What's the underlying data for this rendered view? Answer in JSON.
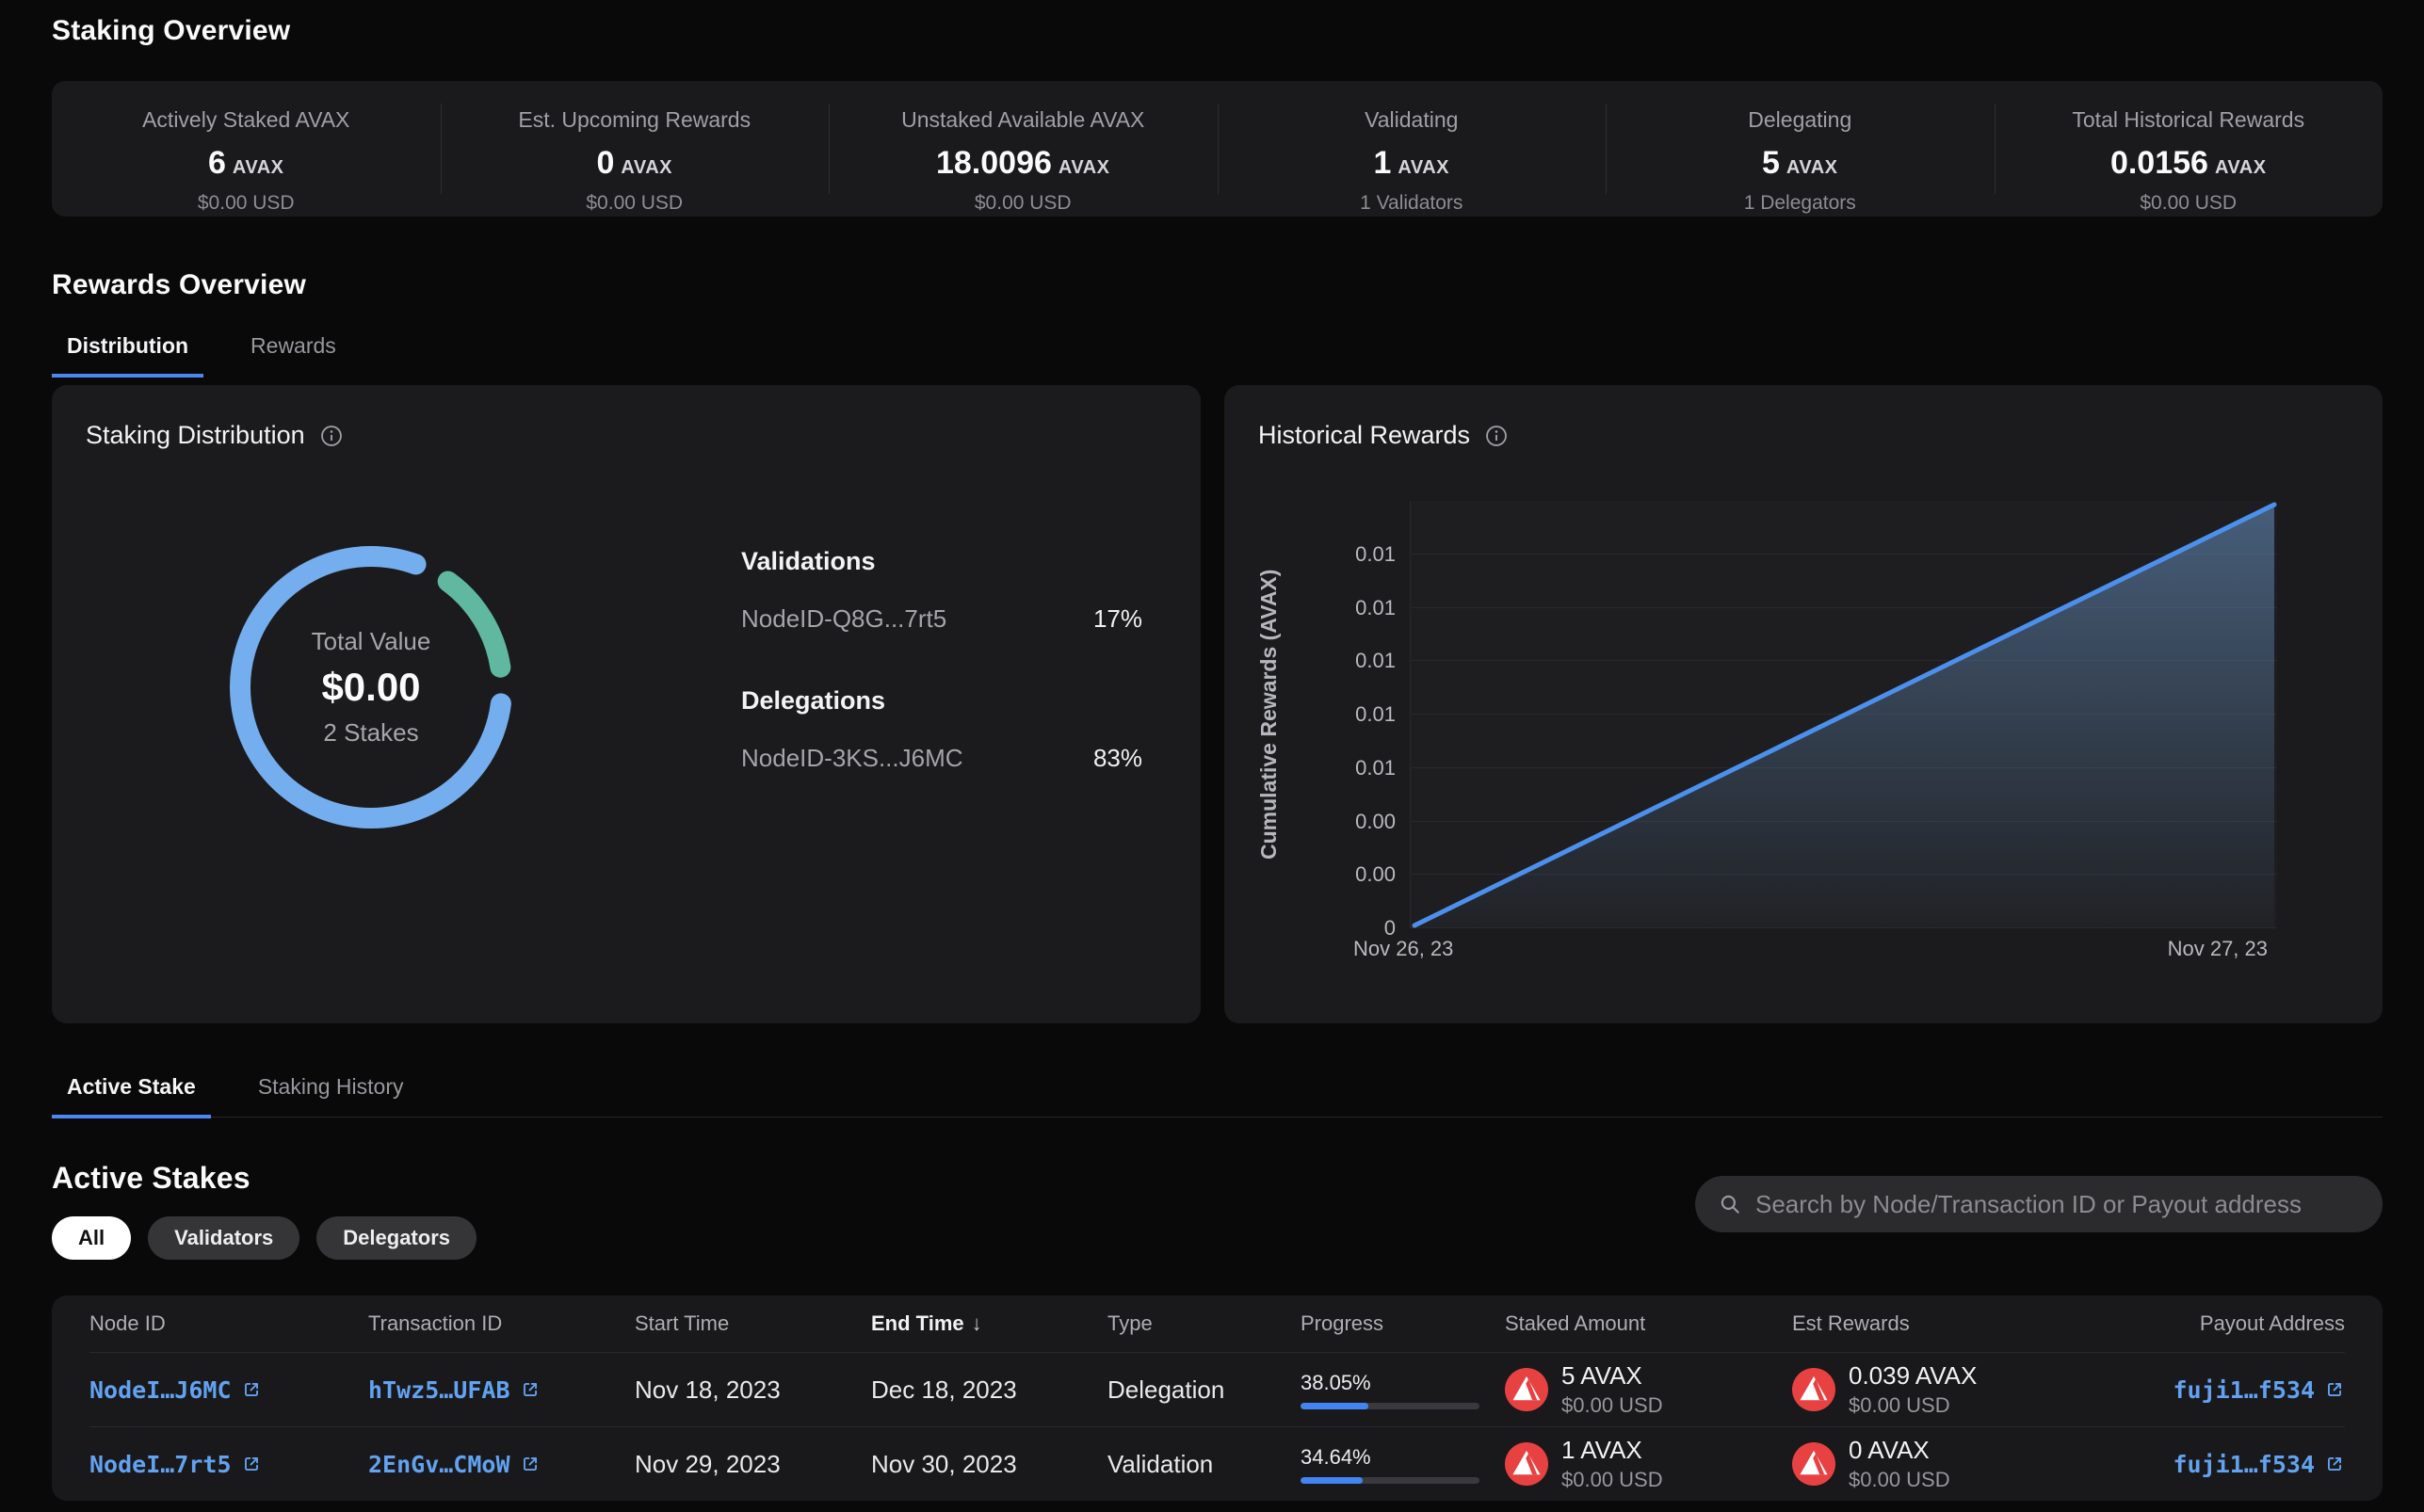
{
  "staking_overview": {
    "title": "Staking Overview",
    "stats": [
      {
        "label": "Actively Staked AVAX",
        "value": "6",
        "unit": "AVAX",
        "sub": "$0.00 USD"
      },
      {
        "label": "Est. Upcoming Rewards",
        "value": "0",
        "unit": "AVAX",
        "sub": "$0.00 USD"
      },
      {
        "label": "Unstaked Available AVAX",
        "value": "18.0096",
        "unit": "AVAX",
        "sub": "$0.00 USD"
      },
      {
        "label": "Validating",
        "value": "1",
        "unit": "AVAX",
        "sub": "1 Validators"
      },
      {
        "label": "Delegating",
        "value": "5",
        "unit": "AVAX",
        "sub": "1 Delegators"
      },
      {
        "label": "Total Historical Rewards",
        "value": "0.0156",
        "unit": "AVAX",
        "sub": "$0.00 USD"
      }
    ]
  },
  "rewards_overview": {
    "title": "Rewards Overview",
    "tabs": [
      {
        "label": "Distribution",
        "active": true
      },
      {
        "label": "Rewards",
        "active": false
      }
    ]
  },
  "staking_distribution": {
    "title": "Staking Distribution",
    "center": {
      "label": "Total Value",
      "value": "$0.00",
      "sub": "2 Stakes"
    },
    "validations_heading": "Validations",
    "delegations_heading": "Delegations",
    "validations": [
      {
        "name": "NodeID-Q8G...7rt5",
        "pct": "17%"
      }
    ],
    "delegations": [
      {
        "name": "NodeID-3KS...J6MC",
        "pct": "83%"
      }
    ]
  },
  "historical_rewards": {
    "title": "Historical Rewards"
  },
  "chart_data": [
    {
      "type": "pie",
      "donut": true,
      "title": "Staking Distribution",
      "start_angle": 28,
      "segments": [
        {
          "label": "NodeID-Q8G...7rt5 (Validation)",
          "value": 17,
          "color": "#5fb89f"
        },
        {
          "label": "NodeID-3KS...J6MC (Delegation)",
          "value": 83,
          "color": "#74aeef"
        }
      ],
      "center_label": "Total Value",
      "center_value": "$0.00",
      "center_sub": "2 Stakes",
      "legend_position": "right"
    },
    {
      "type": "line",
      "title": "Historical Rewards",
      "ylabel": "Cumulative Rewards (AVAX)",
      "x": [
        "Nov 26, 23",
        "Nov 27, 23"
      ],
      "series": [
        {
          "name": "Cumulative Rewards",
          "values": [
            0,
            0.0156
          ]
        }
      ],
      "ylim": [
        0,
        0.0156
      ],
      "ytick_labels": [
        "0",
        "0.00",
        "0.00",
        "0.01",
        "0.01",
        "0.01",
        "0.01",
        "0.01"
      ],
      "grid": true,
      "area_fill": true,
      "line_color": "#4c90ee"
    }
  ],
  "stake_tabs": [
    {
      "label": "Active Stake",
      "active": true
    },
    {
      "label": "Staking History",
      "active": false
    }
  ],
  "active_stakes": {
    "title": "Active Stakes",
    "filters": [
      {
        "label": "All",
        "active": true
      },
      {
        "label": "Validators",
        "active": false
      },
      {
        "label": "Delegators",
        "active": false
      }
    ],
    "search_placeholder": "Search by Node/Transaction ID or Payout address",
    "table": {
      "columns": [
        "Node ID",
        "Transaction ID",
        "Start Time",
        "End Time",
        "Type",
        "Progress",
        "Staked Amount",
        "Est Rewards",
        "Payout Address"
      ],
      "sort_column": "End Time",
      "sort_indicator": "↓",
      "rows": [
        {
          "node_id": "NodeI…J6MC",
          "tx_id": "hTwz5…UFAB",
          "start": "Nov 18, 2023",
          "end": "Dec 18, 2023",
          "type": "Delegation",
          "progress_label": "38.05%",
          "progress_pct": 38.05,
          "staked": "5 AVAX",
          "staked_usd": "$0.00 USD",
          "rewards": "0.039 AVAX",
          "rewards_usd": "$0.00 USD",
          "payout": "fuji1…f534"
        },
        {
          "node_id": "NodeI…7rt5",
          "tx_id": "2EnGv…CMoW",
          "start": "Nov 29, 2023",
          "end": "Nov 30, 2023",
          "type": "Validation",
          "progress_label": "34.64%",
          "progress_pct": 34.64,
          "staked": "1 AVAX",
          "staked_usd": "$0.00 USD",
          "rewards": "0 AVAX",
          "rewards_usd": "$0.00 USD",
          "payout": "fuji1…f534"
        }
      ]
    }
  },
  "colors": {
    "accent_blue": "#4b86f2",
    "link_blue": "#62a2f0",
    "donut_delegation": "#74aeef",
    "donut_validation": "#5fb89f",
    "avax_red": "#e84142"
  }
}
